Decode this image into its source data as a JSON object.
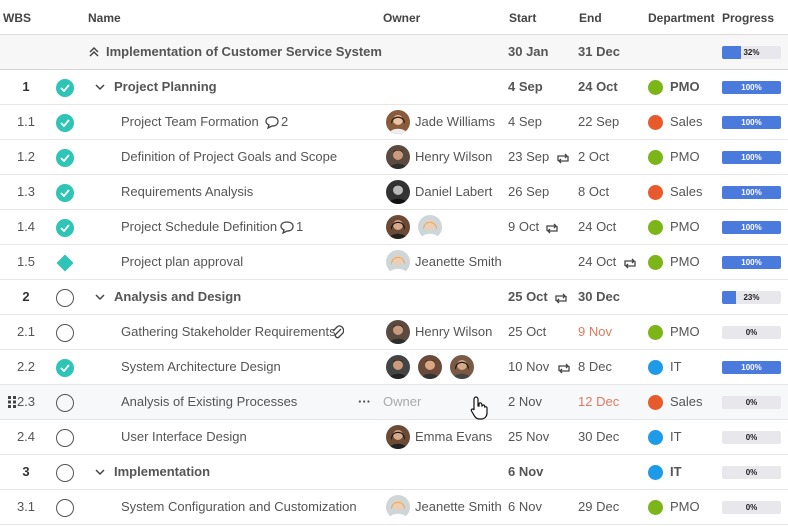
{
  "header": {
    "wbs": "WBS",
    "name": "Name",
    "owner": "Owner",
    "start": "Start",
    "end": "End",
    "department": "Department",
    "progress": "Progress"
  },
  "colors": {
    "teal": "#2ec4b6",
    "green": "#7cb518",
    "orange": "#e85a2c",
    "blue": "#1e9be8",
    "bar": "#4a7bdc"
  },
  "rows": [
    {
      "wbs": "",
      "name": "Implementation of Customer Service System",
      "start": "30 Jan",
      "end": "31 Dec",
      "progress_label": "32%",
      "progress": 0.32
    },
    {
      "wbs": "1",
      "name": "Project Planning",
      "start": "4 Sep",
      "end": "24 Oct",
      "department": "PMO",
      "progress_label": "100%",
      "progress": 1.0
    },
    {
      "wbs": "1.1",
      "name": "Project Team Formation",
      "comments": "2",
      "owner": "Jade Williams",
      "start": "4 Sep",
      "end": "22 Sep",
      "department": "Sales",
      "progress_label": "100%",
      "progress": 1.0
    },
    {
      "wbs": "1.2",
      "name": "Definition of Project Goals and Scope",
      "owner": "Henry Wilson",
      "start": "23 Sep",
      "end": "2 Oct",
      "department": "PMO",
      "progress_label": "100%",
      "progress": 1.0
    },
    {
      "wbs": "1.3",
      "name": "Requirements Analysis",
      "owner": "Daniel Labert",
      "start": "26 Sep",
      "end": "8 Oct",
      "department": "Sales",
      "progress_label": "100%",
      "progress": 1.0
    },
    {
      "wbs": "1.4",
      "name": "Project Schedule Definition",
      "comments": "1",
      "start": "9 Oct",
      "end": "24 Oct",
      "department": "PMO",
      "progress_label": "100%",
      "progress": 1.0
    },
    {
      "wbs": "1.5",
      "name": "Project plan approval",
      "owner": "Jeanette Smith",
      "end": "24 Oct",
      "department": "PMO",
      "progress_label": "100%",
      "progress": 1.0
    },
    {
      "wbs": "2",
      "name": "Analysis and Design",
      "start": "25 Oct",
      "end": "30 Dec",
      "progress_label": "23%",
      "progress": 0.23
    },
    {
      "wbs": "2.1",
      "name": "Gathering Stakeholder Requirements",
      "owner": "Henry Wilson",
      "start": "25 Oct",
      "end": "9 Nov",
      "department": "PMO",
      "progress_label": "0%",
      "progress": 0
    },
    {
      "wbs": "2.2",
      "name": "System Architecture Design",
      "start": "10 Nov",
      "end": "8 Dec",
      "department": "IT",
      "progress_label": "100%",
      "progress": 1.0
    },
    {
      "wbs": "2.3",
      "name": "Analysis of Existing Processes",
      "owner_placeholder": "Owner",
      "start": "2 Nov",
      "end": "12 Dec",
      "department": "Sales",
      "progress_label": "0%",
      "progress": 0
    },
    {
      "wbs": "2.4",
      "name": "User Interface Design",
      "owner": "Emma Evans",
      "start": "25 Nov",
      "end": "30 Dec",
      "department": "IT",
      "progress_label": "0%",
      "progress": 0
    },
    {
      "wbs": "3",
      "name": "Implementation",
      "start": "6 Nov",
      "end": "",
      "department": "IT",
      "progress_label": "0%",
      "progress": 0
    },
    {
      "wbs": "3.1",
      "name": "System Configuration and Customization",
      "owner": "Jeanette Smith",
      "start": "6 Nov",
      "end": "29 Dec",
      "department": "PMO",
      "progress_label": "0%",
      "progress": 0
    }
  ]
}
